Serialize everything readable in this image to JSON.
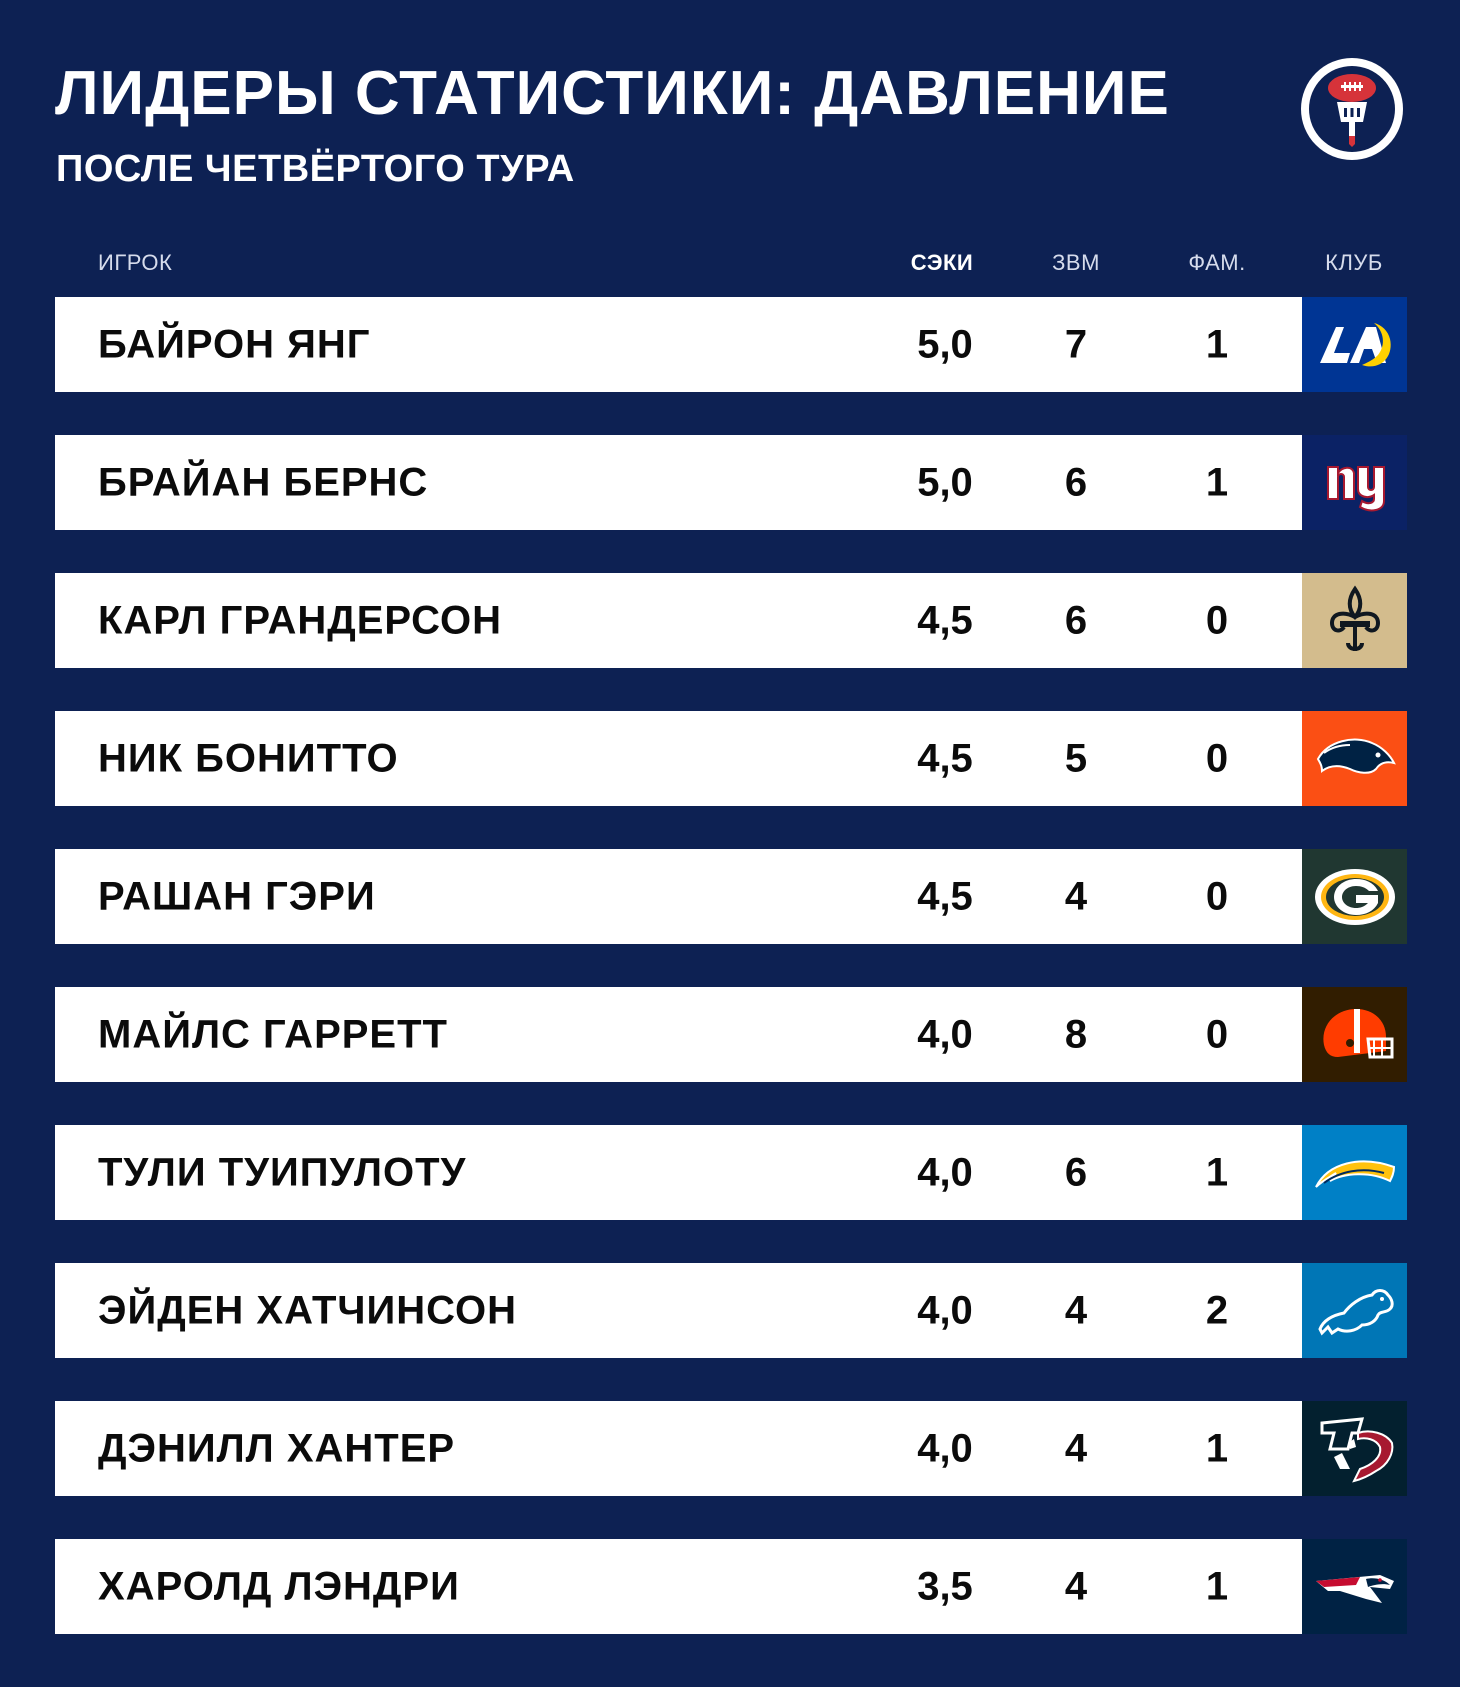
{
  "header": {
    "title": "ЛИДЕРЫ СТАТИСТИКИ: ДАВЛЕНИЕ",
    "subtitle": "ПОСЛЕ ЧЕТВЁРТОГО ТУРА",
    "logo_icon": "football-microphone-icon"
  },
  "table": {
    "columns": {
      "player": "ИГРОК",
      "sacks": "СЭКИ",
      "qb_hits": "ЗВМ",
      "fumbles": "ФАМ.",
      "club": "КЛУБ"
    },
    "rows": [
      {
        "player": "БАЙРОН ЯНГ",
        "sacks": "5,0",
        "qb_hits": "7",
        "fumbles": "1",
        "club_icon": "rams-logo-icon",
        "club_color": "#003594"
      },
      {
        "player": "БРАЙАН БЕРНС",
        "sacks": "5,0",
        "qb_hits": "6",
        "fumbles": "1",
        "club_icon": "giants-logo-icon",
        "club_color": "#0b2265"
      },
      {
        "player": "КАРЛ ГРАНДЕРСОН",
        "sacks": "4,5",
        "qb_hits": "6",
        "fumbles": "0",
        "club_icon": "saints-logo-icon",
        "club_color": "#d3bc8d"
      },
      {
        "player": "НИК БОНИТТО",
        "sacks": "4,5",
        "qb_hits": "5",
        "fumbles": "0",
        "club_icon": "broncos-logo-icon",
        "club_color": "#fb4f14"
      },
      {
        "player": "РАШАН ГЭРИ",
        "sacks": "4,5",
        "qb_hits": "4",
        "fumbles": "0",
        "club_icon": "packers-logo-icon",
        "club_color": "#203731"
      },
      {
        "player": "МАЙЛС ГАРРЕТТ",
        "sacks": "4,0",
        "qb_hits": "8",
        "fumbles": "0",
        "club_icon": "browns-logo-icon",
        "club_color": "#311d00"
      },
      {
        "player": "ТУЛИ ТУИПУЛОТУ",
        "sacks": "4,0",
        "qb_hits": "6",
        "fumbles": "1",
        "club_icon": "chargers-logo-icon",
        "club_color": "#0080c6"
      },
      {
        "player": "ЭЙДЕН ХАТЧИНСОН",
        "sacks": "4,0",
        "qb_hits": "4",
        "fumbles": "2",
        "club_icon": "lions-logo-icon",
        "club_color": "#0076b6"
      },
      {
        "player": "ДЭНИЛЛ ХАНТЕР",
        "sacks": "4,0",
        "qb_hits": "4",
        "fumbles": "1",
        "club_icon": "texans-logo-icon",
        "club_color": "#03202f"
      },
      {
        "player": "ХАРОЛД ЛЭНДРИ",
        "sacks": "3,5",
        "qb_hits": "4",
        "fumbles": "1",
        "club_icon": "patriots-logo-icon",
        "club_color": "#002244"
      }
    ]
  },
  "colors": {
    "background": "#0d2153",
    "row_background": "#ffffff",
    "text_dark": "#0b0b0b",
    "accent_red": "#d6333a"
  }
}
